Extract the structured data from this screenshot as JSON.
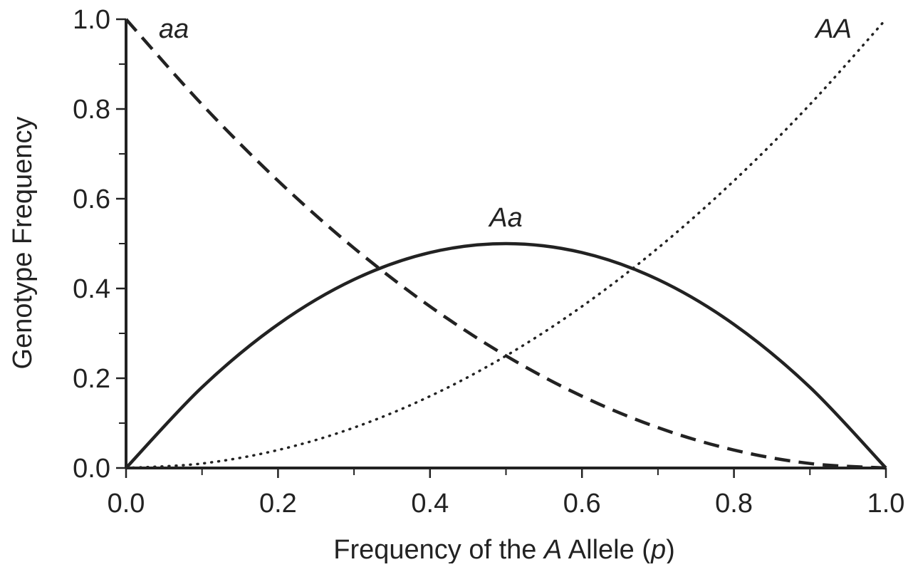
{
  "chart_data": {
    "type": "line",
    "title": "",
    "xlabel": {
      "before": "Frequency of the ",
      "italic1": "A",
      "middle": " Allele (",
      "italic2": "p",
      "after": ")"
    },
    "ylabel": "Genotype Frequency",
    "xlim": [
      0,
      1
    ],
    "ylim": [
      0,
      1
    ],
    "x_ticks": [
      "0.0",
      "0.2",
      "0.4",
      "0.6",
      "0.8",
      "1.0"
    ],
    "y_ticks": [
      "0.0",
      "0.2",
      "0.4",
      "0.6",
      "0.8",
      "1.0"
    ],
    "grid": false,
    "legend": "none",
    "x": [
      0.0,
      0.1,
      0.2,
      0.3,
      0.4,
      0.5,
      0.6,
      0.7,
      0.8,
      0.9,
      1.0
    ],
    "series": [
      {
        "name": "aa",
        "line_style": "dashed",
        "label_x": 0.0,
        "label_y": 1.0,
        "values": [
          1.0,
          0.81,
          0.64,
          0.49,
          0.36,
          0.25,
          0.16,
          0.09,
          0.04,
          0.01,
          0.0
        ]
      },
      {
        "name": "Aa",
        "line_style": "solid",
        "label_x": 0.5,
        "label_y": 0.5,
        "values": [
          0.0,
          0.18,
          0.32,
          0.42,
          0.48,
          0.5,
          0.48,
          0.42,
          0.32,
          0.18,
          0.0
        ]
      },
      {
        "name": "AA",
        "line_style": "dotted",
        "label_x": 1.0,
        "label_y": 1.0,
        "values": [
          0.0,
          0.01,
          0.04,
          0.09,
          0.16,
          0.25,
          0.36,
          0.49,
          0.64,
          0.81,
          1.0
        ]
      }
    ],
    "colors": {
      "line": "#222222",
      "text": "#222222",
      "background": "#ffffff"
    }
  }
}
